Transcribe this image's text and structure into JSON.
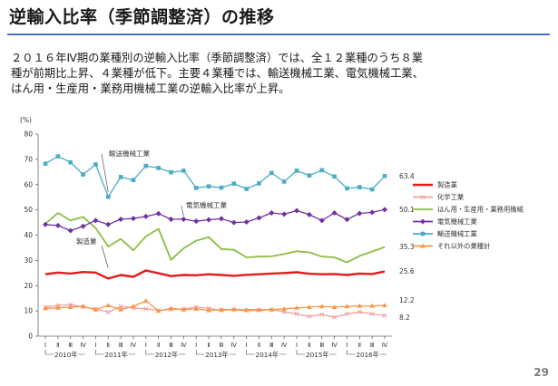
{
  "header": {
    "title": "逆輸入比率（季節調整済）の推移",
    "description_lines": [
      "２０１６年Ⅳ期の業種別の逆輸入比率（季節調整済）では、全１２業種のうち８業",
      "種が前期比上昇、４業種が低下。主要４業種では、輸送機械工業、電気機械工業、",
      "はん用・生産用・業務用機械工業の逆輸入比率が上昇。"
    ]
  },
  "page_number": "29",
  "chart_data": {
    "type": "line",
    "unit_label": "(%)",
    "ylim": [
      0,
      80
    ],
    "yticks": [
      0,
      10,
      20,
      30,
      40,
      50,
      60,
      70,
      80
    ],
    "grid": false,
    "legend_position": "right",
    "quarters": [
      "Ⅰ",
      "Ⅱ",
      "Ⅲ",
      "Ⅳ",
      "Ⅰ",
      "Ⅱ",
      "Ⅲ",
      "Ⅳ",
      "Ⅰ",
      "Ⅱ",
      "Ⅲ",
      "Ⅳ",
      "Ⅰ",
      "Ⅱ",
      "Ⅲ",
      "Ⅳ",
      "Ⅰ",
      "Ⅱ",
      "Ⅲ",
      "Ⅳ",
      "Ⅰ",
      "Ⅱ",
      "Ⅲ",
      "Ⅳ",
      "Ⅰ",
      "Ⅱ",
      "Ⅲ",
      "Ⅳ"
    ],
    "years": [
      "2010年",
      "2011年",
      "2012年",
      "2013年",
      "2014年",
      "2015年",
      "2016年"
    ],
    "series": [
      {
        "name": "製造業",
        "color": "#e31b1b",
        "marker": "none",
        "end_label": "25.6",
        "values": [
          24.5,
          25.2,
          24.8,
          25.4,
          25.2,
          22.8,
          24.2,
          23.5,
          26.0,
          24.9,
          23.8,
          24.2,
          24.1,
          24.5,
          24.2,
          23.9,
          24.3,
          24.5,
          24.8,
          25.0,
          25.3,
          24.7,
          24.5,
          24.6,
          24.2,
          24.8,
          24.6,
          25.6
        ]
      },
      {
        "name": "化学工業",
        "color": "#f0a0a0",
        "marker": "x",
        "end_label": "8.2",
        "values": [
          11.5,
          12.2,
          12.5,
          11.6,
          10.8,
          9.5,
          11.8,
          11.2,
          10.8,
          10.2,
          10.5,
          10.8,
          11.5,
          11.0,
          10.2,
          10.5,
          10.0,
          10.2,
          10.5,
          9.6,
          8.8,
          7.8,
          8.6,
          7.5,
          8.8,
          9.6,
          8.8,
          8.2
        ]
      },
      {
        "name": "はん用・生産用・業務用機械",
        "color": "#8cbd44",
        "marker": "none",
        "end_label": "35.3",
        "values": [
          44.5,
          48.8,
          45.8,
          47.2,
          42.8,
          35.5,
          38.5,
          34.0,
          39.5,
          42.5,
          30.2,
          34.8,
          37.8,
          39.2,
          34.5,
          34.2,
          31.2,
          31.5,
          31.6,
          32.5,
          33.6,
          33.2,
          31.5,
          31.2,
          29.2,
          31.8,
          33.5,
          35.3
        ]
      },
      {
        "name": "電気機械工業",
        "color": "#7030a0",
        "marker": "diamond",
        "end_label": "50.1",
        "values": [
          44.2,
          43.8,
          41.8,
          43.5,
          45.8,
          44.2,
          46.3,
          46.6,
          47.4,
          48.5,
          46.3,
          46.3,
          45.5,
          46.1,
          46.5,
          45.0,
          45.2,
          46.8,
          48.8,
          48.3,
          49.7,
          48.1,
          45.8,
          48.8,
          46.2,
          48.6,
          49.0,
          50.1
        ]
      },
      {
        "name": "輸送機械工業",
        "color": "#4bacc6",
        "marker": "square",
        "end_label": "63.4",
        "values": [
          68.3,
          71.2,
          68.8,
          64.0,
          68.0,
          55.2,
          63.0,
          61.8,
          67.4,
          66.6,
          64.9,
          65.5,
          58.7,
          59.3,
          58.8,
          60.4,
          58.3,
          60.5,
          64.6,
          61.2,
          65.5,
          63.6,
          65.7,
          63.2,
          58.5,
          59.0,
          58.1,
          63.4
        ]
      },
      {
        "name": "それ以外の業種計",
        "color": "#f79646",
        "marker": "triangle",
        "end_label": "12.2",
        "values": [
          11.0,
          11.2,
          11.5,
          11.8,
          10.5,
          12.2,
          10.5,
          11.8,
          14.0,
          10.0,
          11.0,
          10.5,
          10.8,
          10.2,
          10.5,
          10.6,
          10.5,
          10.5,
          10.5,
          10.8,
          11.2,
          11.5,
          11.8,
          11.5,
          11.8,
          12.0,
          12.0,
          12.2
        ]
      }
    ],
    "annotations": [
      {
        "text": "輸送機械工業",
        "series": "輸送機械工業"
      },
      {
        "text": "電気機械工業",
        "series": "電気機械工業"
      },
      {
        "text": "製造業",
        "series": "製造業"
      }
    ]
  }
}
